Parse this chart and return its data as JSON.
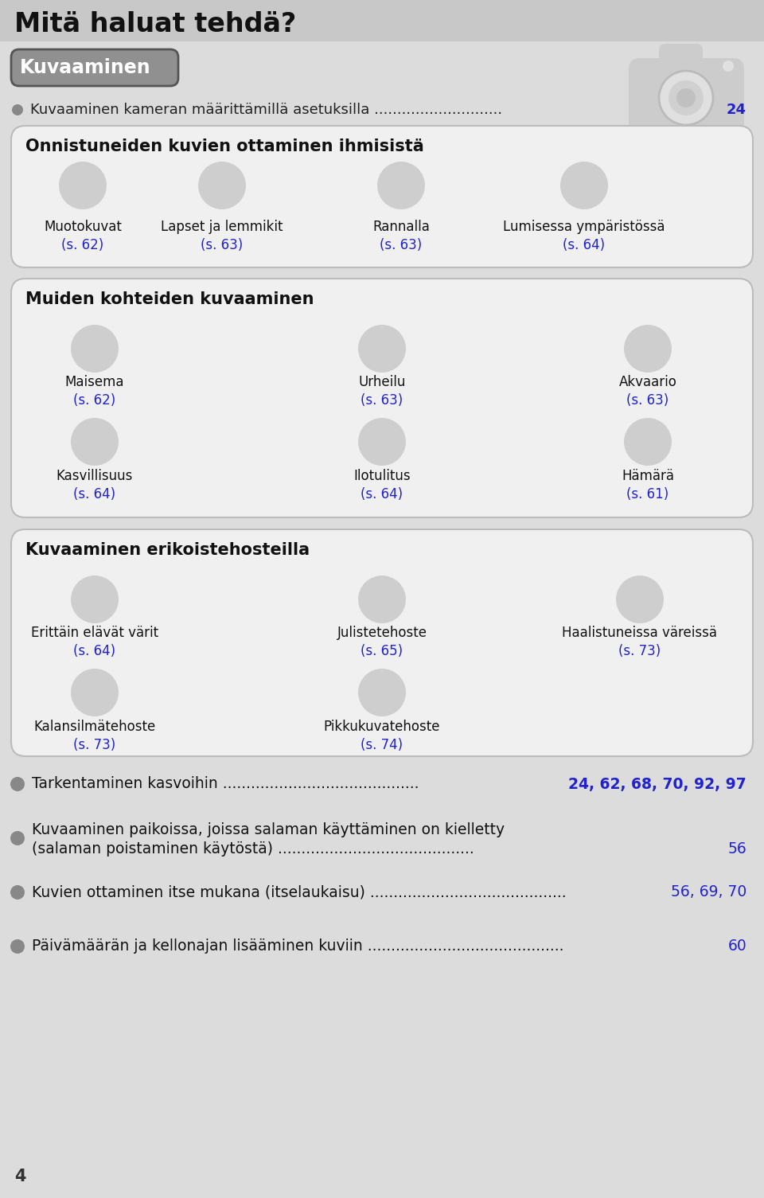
{
  "title": "Mitä haluat tehdä?",
  "section1_header": "Kuvaaminen",
  "section1_bullet": "Kuvaaminen kameran määrittämillä asetuksilla",
  "section1_bullet_num": "24",
  "box1_title": "Onnistuneiden kuvien ottaminen ihmisistä",
  "box1_items": [
    {
      "label": "Muotokuvat",
      "page": "(s. 62)"
    },
    {
      "label": "Lapset ja lemmikit",
      "page": "(s. 63)"
    },
    {
      "label": "Rannalla",
      "page": "(s. 63)"
    },
    {
      "label": "Lumisessa ympäristössä",
      "page": "(s. 64)"
    }
  ],
  "box2_title": "Muiden kohteiden kuvaaminen",
  "box2_row1": [
    {
      "label": "Maisema",
      "page": "(s. 62)"
    },
    {
      "label": "Urheilu",
      "page": "(s. 63)"
    },
    {
      "label": "Akvaario",
      "page": "(s. 63)"
    }
  ],
  "box2_row2": [
    {
      "label": "Kasvillisuus",
      "page": "(s. 64)"
    },
    {
      "label": "Ilotulitus",
      "page": "(s. 64)"
    },
    {
      "label": "Hämärä",
      "page": "(s. 61)"
    }
  ],
  "box3_title": "Kuvaaminen erikoistehosteilla",
  "box3_row1": [
    {
      "label": "Erittäin elävät värit",
      "page": "(s. 64)"
    },
    {
      "label": "Julistetehoste",
      "page": "(s. 65)"
    },
    {
      "label": "Haalistuneissa väreissä",
      "page": "(s. 73)"
    }
  ],
  "box3_row2": [
    {
      "label": "Kalansilmätehoste",
      "page": "(s. 73)"
    },
    {
      "label": "Pikkukuvatehoste",
      "page": "(s. 74)"
    }
  ],
  "bullets": [
    {
      "line1": "Tarkentaminen kasvoihin",
      "line2": "",
      "page": "24, 62, 68, 70, 92, 97",
      "page_bold": true
    },
    {
      "line1": "Kuvaaminen paikoissa, joissa salaman käyttäminen on kielletty",
      "line2": "(salaman poistaminen käytöstä)",
      "page": "56",
      "page_bold": false
    },
    {
      "line1": "Kuvien ottaminen itse mukana (itselaukaisu)",
      "line2": "",
      "page": "56, 69, 70",
      "page_bold": false
    },
    {
      "line1": "Päivämäärän ja kellonajan lisääminen kuviin",
      "line2": "",
      "page": "60",
      "page_bold": false
    }
  ],
  "page_number": "4",
  "blue_color": "#2222cc",
  "title_bg": "#c8c8c8",
  "page_bg": "#dcdcdc",
  "box_bg": "#f0f0f0",
  "icon_color": "#b8b8b8",
  "kuvaa_box_bg": "#888888",
  "kuvaa_box_edge": "#555555"
}
